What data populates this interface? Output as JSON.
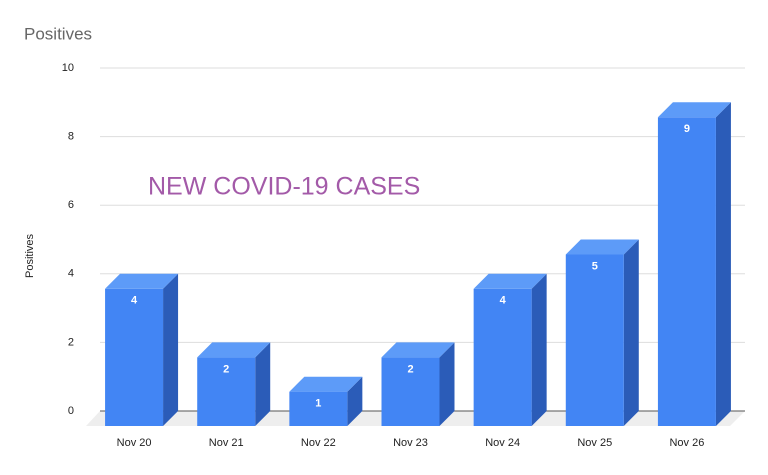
{
  "chart_data": {
    "type": "bar",
    "title": "Positives",
    "annotation": "NEW COVID-19 CASES",
    "y_label": "Positives",
    "categories": [
      "Nov 20",
      "Nov 21",
      "Nov 22",
      "Nov 23",
      "Nov 24",
      "Nov 25",
      "Nov 26"
    ],
    "values": [
      4,
      2,
      1,
      2,
      4,
      5,
      9
    ],
    "color": "#4285f4",
    "ylim": [
      0,
      10
    ],
    "yticks": [
      0,
      2,
      4,
      6,
      8,
      10
    ],
    "grid": true
  }
}
